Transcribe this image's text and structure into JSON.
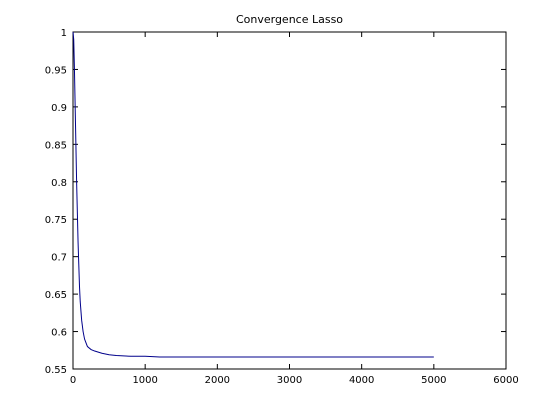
{
  "chart_data": {
    "type": "line",
    "title": "Convergence Lasso",
    "xlabel": "",
    "ylabel": "",
    "xlim": [
      0,
      6000
    ],
    "ylim": [
      0.55,
      1.0
    ],
    "xticks": [
      0,
      1000,
      2000,
      3000,
      4000,
      5000,
      6000
    ],
    "xtick_labels": [
      "0",
      "1000",
      "2000",
      "3000",
      "4000",
      "5000",
      "6000"
    ],
    "yticks": [
      0.55,
      0.6,
      0.65,
      0.7,
      0.75,
      0.8,
      0.85,
      0.9,
      0.95,
      1.0
    ],
    "ytick_labels": [
      "0.55",
      "0.6",
      "0.65",
      "0.7",
      "0.75",
      "0.8",
      "0.85",
      "0.9",
      "0.95",
      "1"
    ],
    "grid": false,
    "line_color": "#00008b",
    "series": [
      {
        "x": [
          1,
          10,
          20,
          30,
          40,
          50,
          60,
          70,
          80,
          90,
          100,
          120,
          140,
          160,
          180,
          200,
          250,
          300,
          400,
          500,
          600,
          800,
          1000,
          1200,
          1500,
          2000,
          3000,
          4000,
          5000
        ],
        "values": [
          1.0,
          0.99,
          0.95,
          0.9,
          0.85,
          0.8,
          0.76,
          0.72,
          0.69,
          0.66,
          0.64,
          0.615,
          0.6,
          0.59,
          0.585,
          0.58,
          0.576,
          0.574,
          0.571,
          0.569,
          0.568,
          0.567,
          0.567,
          0.566,
          0.566,
          0.566,
          0.566,
          0.566,
          0.566
        ]
      }
    ]
  }
}
